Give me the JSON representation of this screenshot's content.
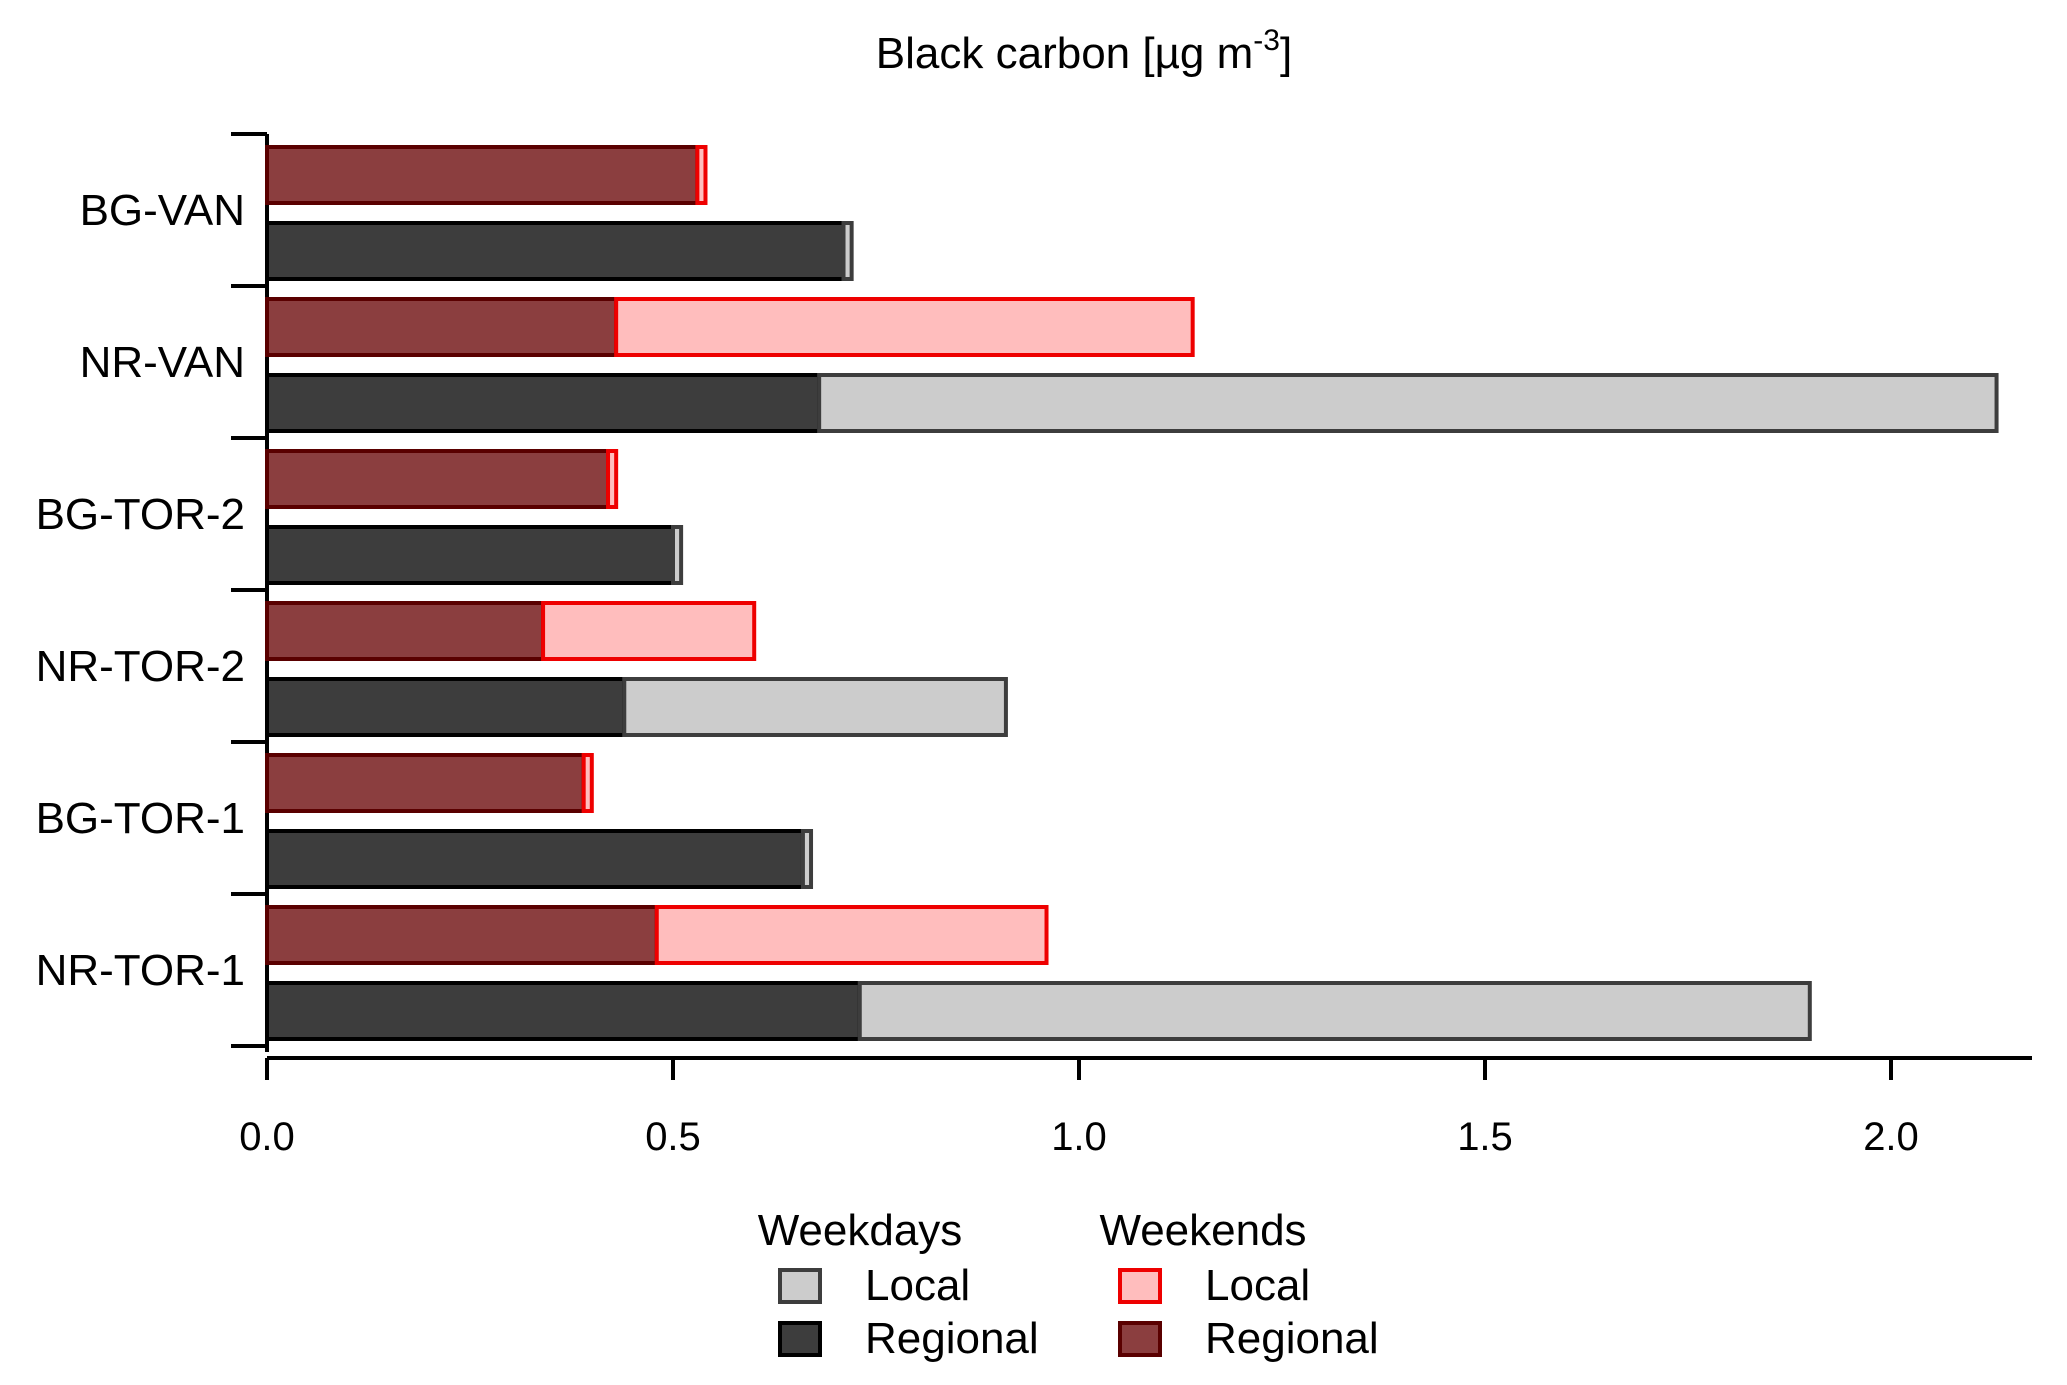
{
  "chart_data": {
    "type": "bar",
    "orientation": "horizontal",
    "stacked": true,
    "title": "Black carbon [µg m",
    "title_superscript": "-3",
    "title_suffix": "]",
    "xlabel": "",
    "ylabel": "",
    "xlim": [
      0,
      2.2
    ],
    "xticks": [
      0.0,
      0.5,
      1.0,
      1.5,
      2.0
    ],
    "xtick_labels": [
      "0.0",
      "0.5",
      "1.0",
      "1.5",
      "2.0"
    ],
    "grid": false,
    "legend_placement": "bottom-center",
    "categories": [
      "BG-VAN",
      "NR-VAN",
      "BG-TOR-2",
      "NR-TOR-2",
      "BG-TOR-1",
      "NR-TOR-1"
    ],
    "groups": [
      {
        "name": "Weekends",
        "series": [
          {
            "name": "Regional",
            "fill": "#8b3e3f",
            "stroke": "#5a0000",
            "values": [
              0.53,
              0.43,
              0.42,
              0.34,
              0.39,
              0.48
            ]
          },
          {
            "name": "Local",
            "fill": "#ffbdbd",
            "stroke": "#ee0000",
            "values": [
              0.01,
              0.71,
              0.01,
              0.26,
              0.01,
              0.48
            ]
          }
        ]
      },
      {
        "name": "Weekdays",
        "series": [
          {
            "name": "Regional",
            "fill": "#3d3d3d",
            "stroke": "#000000",
            "values": [
              0.71,
              0.68,
              0.5,
              0.44,
              0.66,
              0.73
            ]
          },
          {
            "name": "Local",
            "fill": "#cccccc",
            "stroke": "#3d3d3d",
            "values": [
              0.01,
              1.45,
              0.01,
              0.47,
              0.01,
              1.17
            ]
          }
        ]
      }
    ]
  },
  "legend": {
    "weekdays_heading": "Weekdays",
    "weekends_heading": "Weekends",
    "weekdays_local_label": "Local",
    "weekdays_regional_label": "Regional",
    "weekends_local_label": "Local",
    "weekends_regional_label": "Regional",
    "colors": {
      "weekdays_local_fill": "#cccccc",
      "weekdays_local_stroke": "#3d3d3d",
      "weekdays_regional_fill": "#3d3d3d",
      "weekdays_regional_stroke": "#000000",
      "weekends_local_fill": "#ffbdbd",
      "weekends_local_stroke": "#ee0000",
      "weekends_regional_fill": "#8b3e3f",
      "weekends_regional_stroke": "#5a0000"
    }
  }
}
